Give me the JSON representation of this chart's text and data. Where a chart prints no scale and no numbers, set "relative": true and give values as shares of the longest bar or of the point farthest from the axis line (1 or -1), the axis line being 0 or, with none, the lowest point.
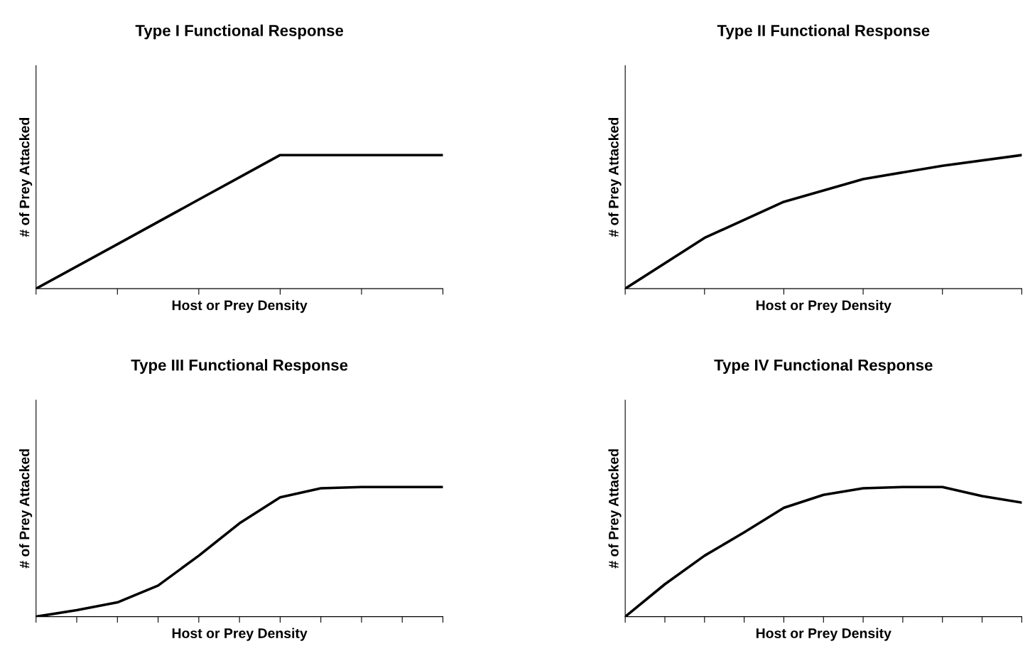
{
  "chart_data": [
    {
      "type": "line",
      "title": "Type I Functional Response",
      "xlabel": "Host or Prey Density",
      "ylabel": "# of Prey Attacked",
      "relative": true,
      "categories": [
        null,
        null,
        null,
        null,
        null,
        null
      ],
      "series": [
        {
          "color": "#000000",
          "values": [
            0,
            0.333,
            0.667,
            1,
            1,
            1
          ]
        }
      ]
    },
    {
      "type": "line",
      "title": "Type II Functional Response",
      "xlabel": "Host or Prey Density",
      "ylabel": "# of Prey Attacked",
      "relative": true,
      "categories": [
        null,
        null,
        null,
        null,
        null,
        null
      ],
      "series": [
        {
          "color": "#000000",
          "values": [
            0,
            0.38,
            0.65,
            0.82,
            0.92,
            1
          ]
        }
      ]
    },
    {
      "type": "line",
      "title": "Type III Functional Response",
      "xlabel": "Host or Prey Density",
      "ylabel": "# of Prey Attacked",
      "relative": true,
      "categories": [
        null,
        null,
        null,
        null,
        null,
        null,
        null,
        null,
        null,
        null,
        null
      ],
      "series": [
        {
          "color": "#000000",
          "values": [
            0,
            0.05,
            0.11,
            0.24,
            0.47,
            0.72,
            0.92,
            0.99,
            1,
            1,
            1
          ]
        }
      ]
    },
    {
      "type": "line",
      "title": "Type IV Functional Response",
      "xlabel": "Host or Prey Density",
      "ylabel": "# of Prey Attacked",
      "relative": true,
      "categories": [
        null,
        null,
        null,
        null,
        null,
        null,
        null,
        null,
        null,
        null,
        null
      ],
      "series": [
        {
          "color": "#000000",
          "values": [
            0,
            0.25,
            0.47,
            0.65,
            0.84,
            0.94,
            0.99,
            1,
            1,
            0.93,
            0.88
          ]
        }
      ]
    }
  ]
}
